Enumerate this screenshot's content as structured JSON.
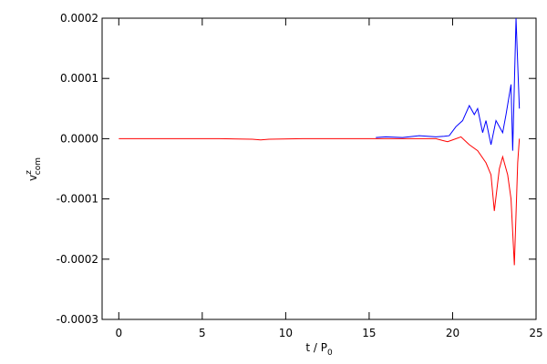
{
  "chart_data": {
    "type": "line",
    "xlabel": {
      "text": "t / P",
      "sub": "0"
    },
    "ylabel": {
      "text": "v",
      "sup": "z",
      "sub": "com"
    },
    "xlim": [
      -1,
      25
    ],
    "xticks": [
      0,
      5,
      10,
      15,
      20,
      25
    ],
    "ylim": [
      -0.0003,
      0.0002
    ],
    "yticks": [
      -0.0003,
      -0.0002,
      -0.0001,
      {
        "value": 0,
        "label": "0.0000"
      },
      0.0001,
      0.0002
    ],
    "series": [
      {
        "color": "#0000ff",
        "x": [
          15.4,
          16,
          17,
          18,
          19,
          19.5,
          19.8,
          20.2,
          20.6,
          21,
          21.3,
          21.5,
          21.8,
          22,
          22.3,
          22.6,
          23,
          23.2,
          23.5,
          23.6,
          23.8,
          24
        ],
        "values": [
          2e-06,
          3e-06,
          2e-06,
          5e-06,
          3e-06,
          4e-06,
          5e-06,
          2e-05,
          3e-05,
          5.5e-05,
          4e-05,
          5e-05,
          1e-05,
          3e-05,
          -1e-05,
          3e-05,
          1e-05,
          4e-05,
          9e-05,
          -2e-05,
          0.0002,
          5e-05
        ]
      },
      {
        "color": "#ff0000",
        "x": [
          0,
          2,
          4,
          6,
          8,
          8.5,
          9,
          11,
          13,
          15,
          17,
          19,
          19.4,
          19.7,
          20,
          20.5,
          21,
          21.5,
          22,
          22.3,
          22.5,
          22.8,
          23,
          23.3,
          23.5,
          23.7,
          23.9,
          24
        ],
        "values": [
          0,
          0,
          0,
          0,
          -1e-06,
          -2e-06,
          -1e-06,
          0,
          0,
          0,
          0,
          0,
          -3e-06,
          -5e-06,
          -2e-06,
          3e-06,
          -1e-05,
          -2e-05,
          -4e-05,
          -6e-05,
          -0.00012,
          -5e-05,
          -3e-05,
          -6e-05,
          -0.0001,
          -0.00021,
          -4e-05,
          0
        ]
      }
    ]
  }
}
